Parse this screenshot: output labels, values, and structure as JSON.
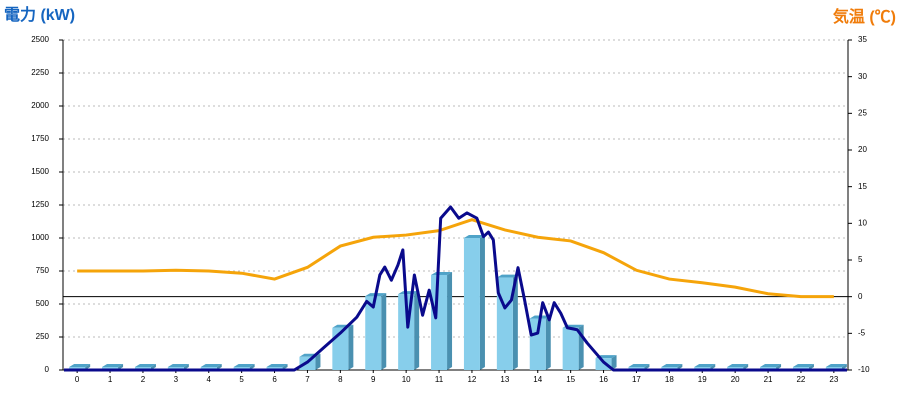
{
  "chart_data": {
    "type": "combo",
    "y_label": "電力 (kW)",
    "y2_label": "気温 (℃)",
    "categories": [
      "0",
      "1",
      "2",
      "3",
      "4",
      "5",
      "6",
      "7",
      "8",
      "9",
      "10",
      "11",
      "12",
      "13",
      "14",
      "15",
      "16",
      "17",
      "18",
      "19",
      "20",
      "21",
      "22",
      "23"
    ],
    "bars": {
      "color": "#87ceeb",
      "values": [
        0,
        0,
        0,
        0,
        0,
        0,
        0,
        100,
        320,
        560,
        575,
        720,
        1000,
        700,
        390,
        320,
        90,
        0,
        0,
        0,
        0,
        0,
        0,
        0
      ]
    },
    "line": {
      "color": "#0a0a8c",
      "x": [
        -0.4,
        6.6,
        7,
        7.5,
        8,
        8.5,
        8.8,
        9,
        9.2,
        9.35,
        9.55,
        9.75,
        9.9,
        10.05,
        10.25,
        10.5,
        10.7,
        10.9,
        11.05,
        11.35,
        11.6,
        11.85,
        12.15,
        12.35,
        12.5,
        12.65,
        12.8,
        13,
        13.2,
        13.4,
        13.6,
        13.8,
        14,
        14.15,
        14.35,
        14.5,
        14.7,
        14.9,
        15.2,
        15.5,
        16,
        16.3,
        23.4
      ],
      "values": [
        0,
        0,
        60,
        170,
        280,
        400,
        520,
        477,
        720,
        780,
        680,
        795,
        910,
        325,
        720,
        415,
        605,
        395,
        1150,
        1235,
        1150,
        1190,
        1150,
        1010,
        1045,
        985,
        585,
        470,
        530,
        775,
        530,
        265,
        280,
        510,
        380,
        510,
        430,
        320,
        305,
        205,
        60,
        0,
        0
      ]
    },
    "temperature": {
      "color": "#f5a40a",
      "axis": "y2",
      "values": [
        3.5,
        3.5,
        3.5,
        3.6,
        3.5,
        3.2,
        2.4,
        4.0,
        6.9,
        8.1,
        8.4,
        9.0,
        10.5,
        9.1,
        8.1,
        7.6,
        6.0,
        3.6,
        2.4,
        1.9,
        1.3,
        0.4,
        0.0,
        0.0
      ]
    },
    "xlim": [
      -0.43,
      23.43
    ],
    "ylim": [
      0,
      2500
    ],
    "yticks": [
      0,
      250,
      500,
      750,
      1000,
      1250,
      1500,
      1750,
      2000,
      2250,
      2500
    ],
    "y2lim": [
      -10,
      35
    ],
    "y2ticks": [
      -10,
      -5,
      0,
      5,
      10,
      15,
      20,
      25,
      30,
      35
    ],
    "reference_line": {
      "axis": "y2",
      "value": 0
    },
    "grid": true
  }
}
